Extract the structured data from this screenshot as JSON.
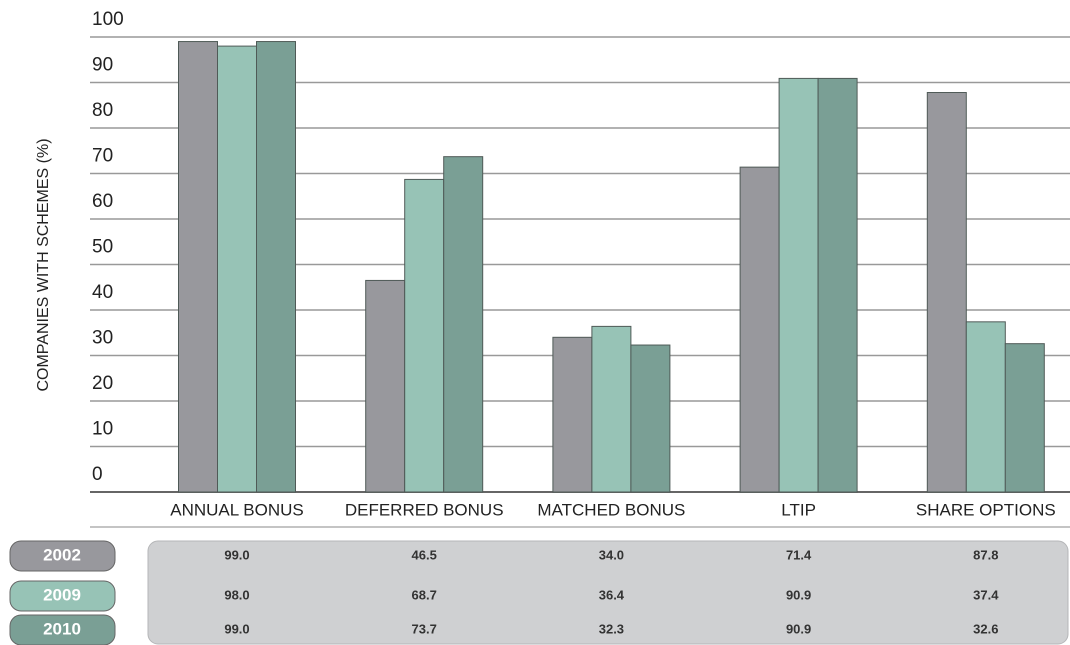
{
  "chart_data": {
    "type": "bar",
    "y_label": "COMPANIES WITH SCHEMES (%)",
    "categories": [
      "ANNUAL BONUS",
      "DEFERRED BONUS",
      "MATCHED BONUS",
      "LTIP",
      "SHARE OPTIONS"
    ],
    "series": [
      {
        "name": "2002",
        "color": "#98989d",
        "values": [
          99.0,
          46.5,
          34.0,
          71.4,
          87.8
        ],
        "value_labels": [
          "99.0",
          "46.5",
          "34.0",
          "71.4",
          "87.8"
        ]
      },
      {
        "name": "2009",
        "color": "#97c3b6",
        "values": [
          98.0,
          68.7,
          36.4,
          90.9,
          37.4
        ],
        "value_labels": [
          "98.0",
          "68.7",
          "36.4",
          "90.9",
          "37.4"
        ]
      },
      {
        "name": "2010",
        "color": "#7a9f95",
        "values": [
          99.0,
          73.7,
          32.3,
          90.9,
          32.6
        ],
        "value_labels": [
          "99.0",
          "73.7",
          "32.3",
          "90.9",
          "32.6"
        ]
      }
    ],
    "ylim": [
      0,
      100
    ],
    "yticks": [
      0,
      10,
      20,
      30,
      40,
      50,
      60,
      70,
      80,
      90,
      100
    ],
    "grid": true
  }
}
